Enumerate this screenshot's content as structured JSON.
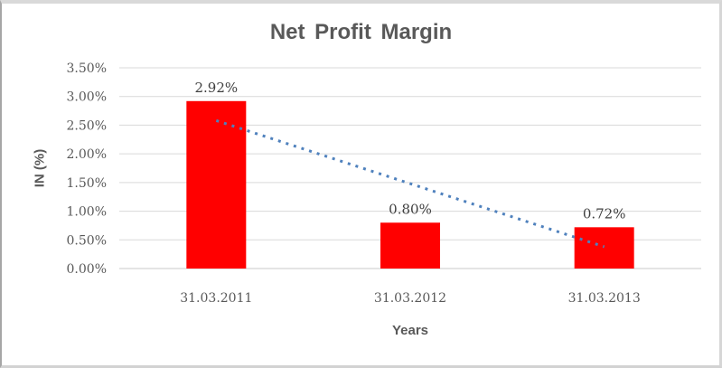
{
  "window": {
    "background": "#ffffff",
    "border_color": "#d9d9d9"
  },
  "chart_data": {
    "type": "bar",
    "title": "Net Profit Margin",
    "xlabel": "Years",
    "ylabel": "IN (%)",
    "categories": [
      "31.03.2011",
      "31.03.2012",
      "31.03.2013"
    ],
    "values": [
      2.92,
      0.8,
      0.72
    ],
    "data_labels": [
      "2.92%",
      "0.80%",
      "0.72%"
    ],
    "ylim": [
      0,
      3.5
    ],
    "ytick_step": 0.5,
    "ytick_labels": [
      "0.00%",
      "0.50%",
      "1.00%",
      "1.50%",
      "2.00%",
      "2.50%",
      "3.00%",
      "3.50%"
    ],
    "grid": true,
    "legend": false,
    "bar_color": "#ff0000",
    "gridline_color": "#d9d9d9",
    "axis_line_color": "#c9c9c9",
    "title_color": "#595959",
    "tick_color": "#595959",
    "data_label_color": "#3f3f3f",
    "trendline": {
      "type": "linear",
      "style": "dotted",
      "color": "#4f81bd",
      "start_value": 2.58,
      "end_value": 0.38
    }
  }
}
